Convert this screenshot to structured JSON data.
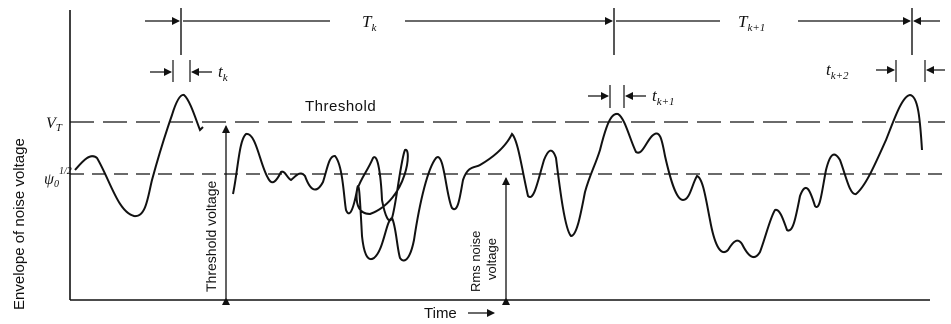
{
  "figure": {
    "y_axis_label": "Envelope of noise voltage",
    "x_axis_label": "Time",
    "threshold_label": "Threshold",
    "threshold_voltage_label": "Threshold voltage",
    "rms_label_line1": "Rms noise",
    "rms_label_line2": "voltage",
    "vt_label": "V",
    "vt_sub": "T",
    "psi_label": "ψ",
    "psi_sub": "0",
    "psi_sup": "1/2",
    "interval_k": "T",
    "interval_k_sub": "k",
    "interval_k1": "T",
    "interval_k1_sub": "k+1",
    "dur_k": "t",
    "dur_k_sub": "k",
    "dur_k1": "t",
    "dur_k1_sub": "k+1",
    "dur_k2": "t",
    "dur_k2_sub": "k+2"
  }
}
